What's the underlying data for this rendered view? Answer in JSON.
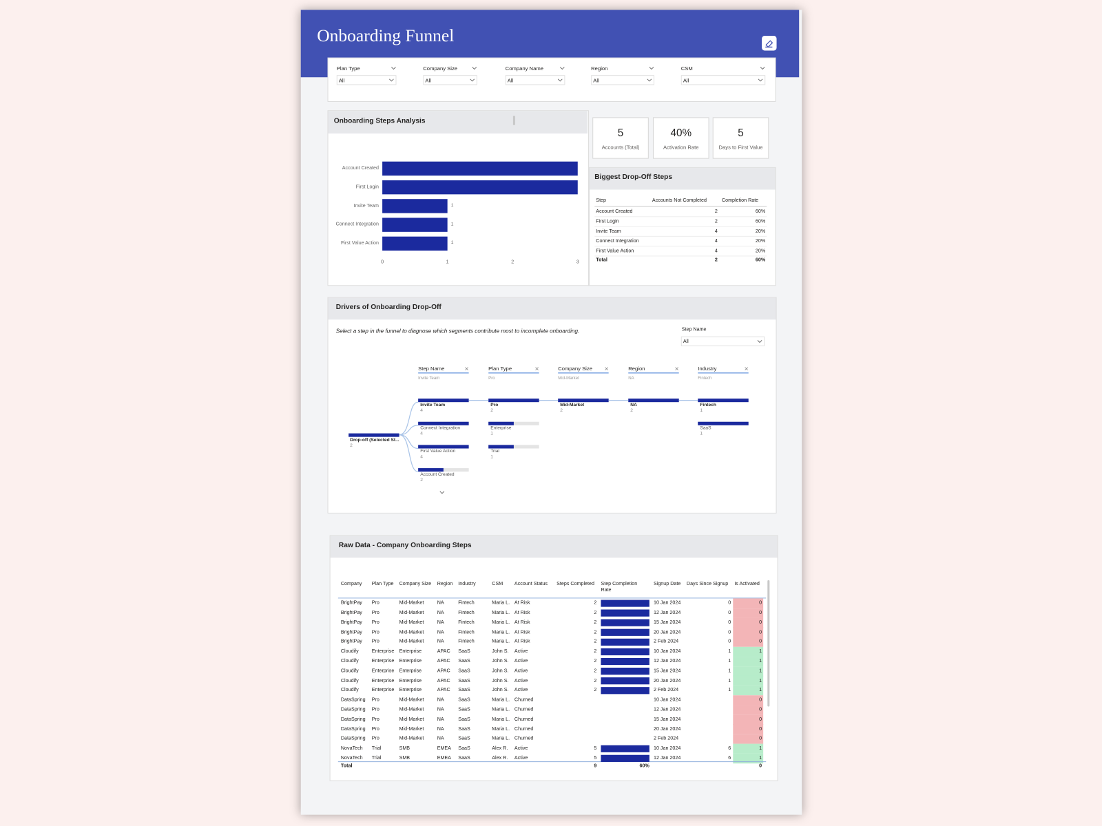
{
  "header": {
    "title": "Onboarding Funnel"
  },
  "filters": [
    {
      "label": "Plan Type",
      "value": "All"
    },
    {
      "label": "Company Size",
      "value": "All"
    },
    {
      "label": "Company Name",
      "value": "All"
    },
    {
      "label": "Region",
      "value": "All"
    },
    {
      "label": "CSM",
      "value": "All"
    }
  ],
  "chart_data": {
    "type": "bar",
    "orientation": "horizontal",
    "title": "Onboarding Steps Analysis",
    "categories": [
      "Account Created",
      "First Login",
      "Invite Team",
      "Connect Integration",
      "First Value Action"
    ],
    "values": [
      3,
      3,
      1,
      1,
      1
    ],
    "color": "#1b2a9e",
    "xlim": [
      0,
      3
    ],
    "xticks": [
      0,
      1,
      2,
      3
    ]
  },
  "kpis": [
    {
      "value": "5",
      "label": "Accounts (Total)"
    },
    {
      "value": "40%",
      "label": "Activation Rate"
    },
    {
      "value": "5",
      "label": "Days to First Value"
    }
  ],
  "dropoff_table": {
    "title": "Biggest Drop-Off Steps",
    "columns": [
      "Step",
      "Accounts Not Completed",
      "Completion Rate"
    ],
    "rows": [
      [
        "Account Created",
        "2",
        "60%"
      ],
      [
        "First Login",
        "2",
        "60%"
      ],
      [
        "Invite Team",
        "4",
        "20%"
      ],
      [
        "Connect Integration",
        "4",
        "20%"
      ],
      [
        "First Value Action",
        "4",
        "20%"
      ]
    ],
    "total": [
      "Total",
      "2",
      "60%"
    ]
  },
  "drivers": {
    "title": "Drivers of Onboarding Drop-Off",
    "subtitle": "Select a step in the funnel to diagnose which segments contribute most to incomplete onboarding.",
    "slicer": {
      "label": "Step Name",
      "value": "All"
    },
    "root": {
      "label": "Drop-off (Selected St...",
      "value": 2
    },
    "levels": [
      {
        "name": "Step Name",
        "selected": "Invite Team",
        "nodes": [
          {
            "label": "Invite Team",
            "value": 4
          },
          {
            "label": "Connect Integration",
            "value": 4
          },
          {
            "label": "First Value Action",
            "value": 4
          },
          {
            "label": "Account Created",
            "value": 2
          }
        ]
      },
      {
        "name": "Plan Type",
        "selected": "Pro",
        "nodes": [
          {
            "label": "Pro",
            "value": 2
          },
          {
            "label": "Enterprise",
            "value": 1
          },
          {
            "label": "Trial",
            "value": 1
          }
        ]
      },
      {
        "name": "Company Size",
        "selected": "Mid-Market",
        "nodes": [
          {
            "label": "Mid-Market",
            "value": 2
          }
        ]
      },
      {
        "name": "Region",
        "selected": "NA",
        "nodes": [
          {
            "label": "NA",
            "value": 2
          }
        ]
      },
      {
        "name": "Industry",
        "selected": "Fintech",
        "nodes": [
          {
            "label": "Fintech",
            "value": 1
          },
          {
            "label": "SaaS",
            "value": 1
          }
        ]
      }
    ]
  },
  "raw_data": {
    "title": "Raw Data - Company Onboarding Steps",
    "columns": [
      "Company",
      "Plan Type",
      "Company Size",
      "Region",
      "Industry",
      "CSM",
      "Account Status",
      "Steps Completed",
      "Step Completion Rate",
      "Signup Date",
      "Days Since Signup",
      "Is Activated"
    ],
    "rate_lim": [
      0,
      100
    ],
    "activated_colors": {
      "0": "#f3b5b7",
      "1": "#b7ecca"
    },
    "rows": [
      [
        "BrightPay",
        "Pro",
        "Mid-Market",
        "NA",
        "Fintech",
        "Maria L.",
        "At Risk",
        "2",
        100,
        "10 Jan 2024",
        "0",
        "0"
      ],
      [
        "BrightPay",
        "Pro",
        "Mid-Market",
        "NA",
        "Fintech",
        "Maria L.",
        "At Risk",
        "2",
        100,
        "12 Jan 2024",
        "0",
        "0"
      ],
      [
        "BrightPay",
        "Pro",
        "Mid-Market",
        "NA",
        "Fintech",
        "Maria L.",
        "At Risk",
        "2",
        100,
        "15 Jan 2024",
        "0",
        "0"
      ],
      [
        "BrightPay",
        "Pro",
        "Mid-Market",
        "NA",
        "Fintech",
        "Maria L.",
        "At Risk",
        "2",
        100,
        "20 Jan 2024",
        "0",
        "0"
      ],
      [
        "BrightPay",
        "Pro",
        "Mid-Market",
        "NA",
        "Fintech",
        "Maria L.",
        "At Risk",
        "2",
        100,
        "2 Feb 2024",
        "0",
        "0"
      ],
      [
        "Cloudify",
        "Enterprise",
        "Enterprise",
        "APAC",
        "SaaS",
        "John S.",
        "Active",
        "2",
        100,
        "10 Jan 2024",
        "1",
        "1"
      ],
      [
        "Cloudify",
        "Enterprise",
        "Enterprise",
        "APAC",
        "SaaS",
        "John S.",
        "Active",
        "2",
        100,
        "12 Jan 2024",
        "1",
        "1"
      ],
      [
        "Cloudify",
        "Enterprise",
        "Enterprise",
        "APAC",
        "SaaS",
        "John S.",
        "Active",
        "2",
        100,
        "15 Jan 2024",
        "1",
        "1"
      ],
      [
        "Cloudify",
        "Enterprise",
        "Enterprise",
        "APAC",
        "SaaS",
        "John S.",
        "Active",
        "2",
        100,
        "20 Jan 2024",
        "1",
        "1"
      ],
      [
        "Cloudify",
        "Enterprise",
        "Enterprise",
        "APAC",
        "SaaS",
        "John S.",
        "Active",
        "2",
        100,
        "2 Feb 2024",
        "1",
        "1"
      ],
      [
        "DataSpring",
        "Pro",
        "Mid-Market",
        "NA",
        "SaaS",
        "Maria L.",
        "Churned",
        null,
        null,
        "10 Jan 2024",
        null,
        "0"
      ],
      [
        "DataSpring",
        "Pro",
        "Mid-Market",
        "NA",
        "SaaS",
        "Maria L.",
        "Churned",
        null,
        null,
        "12 Jan 2024",
        null,
        "0"
      ],
      [
        "DataSpring",
        "Pro",
        "Mid-Market",
        "NA",
        "SaaS",
        "Maria L.",
        "Churned",
        null,
        null,
        "15 Jan 2024",
        null,
        "0"
      ],
      [
        "DataSpring",
        "Pro",
        "Mid-Market",
        "NA",
        "SaaS",
        "Maria L.",
        "Churned",
        null,
        null,
        "20 Jan 2024",
        null,
        "0"
      ],
      [
        "DataSpring",
        "Pro",
        "Mid-Market",
        "NA",
        "SaaS",
        "Maria L.",
        "Churned",
        null,
        null,
        "2 Feb 2024",
        null,
        "0"
      ],
      [
        "NovaTech",
        "Trial",
        "SMB",
        "EMEA",
        "SaaS",
        "Alex R.",
        "Active",
        "5",
        100,
        "10 Jan 2024",
        "6",
        "1"
      ],
      [
        "NovaTech",
        "Trial",
        "SMB",
        "EMEA",
        "SaaS",
        "Alex R.",
        "Active",
        "5",
        100,
        "12 Jan 2024",
        "6",
        "1"
      ]
    ],
    "total": [
      "Total",
      null,
      null,
      null,
      null,
      null,
      null,
      "9",
      "60%",
      null,
      null,
      "0"
    ]
  }
}
